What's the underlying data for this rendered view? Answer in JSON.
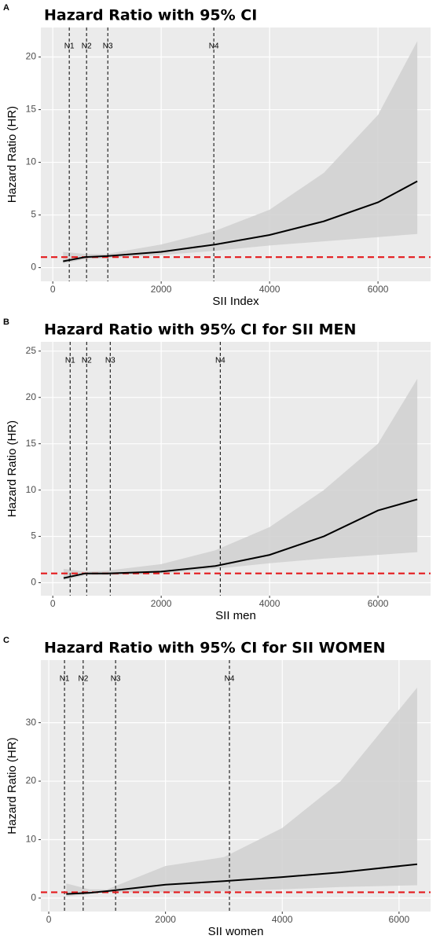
{
  "chart_data": [
    {
      "type": "line",
      "panel_label": "A",
      "title": "Hazard Ratio with 95% CI",
      "x_label": "SII Index",
      "y_label": "Hazard Ratio (HR)",
      "x": [
        190,
        600,
        1000,
        2000,
        3000,
        4000,
        5000,
        6000,
        6725
      ],
      "series": [
        {
          "color": "#000000",
          "values": [
            0.6,
            1.0,
            1.1,
            1.5,
            2.2,
            3.1,
            4.4,
            6.2,
            8.2
          ]
        }
      ],
      "band": {
        "color": "#d0d0d0",
        "lower": [
          0.4,
          0.8,
          0.9,
          1.2,
          1.6,
          2.1,
          2.5,
          2.9,
          3.2
        ],
        "upper": [
          1.5,
          1.3,
          1.3,
          2.2,
          3.5,
          5.5,
          9,
          14.5,
          21.5
        ]
      },
      "vlines": [
        {
          "value": 304,
          "label": "N1"
        },
        {
          "value": 623,
          "label": "N2"
        },
        {
          "value": 1015,
          "label": "N3"
        },
        {
          "value": 2971,
          "label": "N4"
        }
      ],
      "hline": {
        "value": 1,
        "color": "#e41a1c"
      },
      "xlim": [
        -220,
        6970
      ],
      "ylim": [
        -1.3,
        22.8
      ],
      "xticks": [
        0,
        2000,
        4000,
        6000
      ],
      "yticks": [
        0,
        5,
        10,
        15,
        20
      ],
      "grid": true
    },
    {
      "type": "line",
      "panel_label": "B",
      "title": "Hazard Ratio with 95% CI for SII MEN",
      "x_label": "SII  men",
      "y_label": "Hazard Ratio (HR)",
      "x": [
        200,
        600,
        1000,
        2000,
        3000,
        4000,
        5000,
        6000,
        6725
      ],
      "series": [
        {
          "color": "#000000",
          "values": [
            0.5,
            1.0,
            1.0,
            1.2,
            1.8,
            3.0,
            5.0,
            7.8,
            9.0
          ]
        }
      ],
      "band": {
        "color": "#d0d0d0",
        "lower": [
          0.3,
          0.8,
          0.8,
          1.0,
          1.5,
          2.1,
          2.6,
          3.0,
          3.3
        ],
        "upper": [
          1.5,
          1.2,
          1.3,
          2.0,
          3.5,
          6.0,
          10.0,
          15.0,
          22.0
        ]
      },
      "vlines": [
        {
          "value": 320,
          "label": "N1"
        },
        {
          "value": 625,
          "label": "N2"
        },
        {
          "value": 1060,
          "label": "N3"
        },
        {
          "value": 3090,
          "label": "N4"
        }
      ],
      "hline": {
        "value": 1,
        "color": "#e41a1c"
      },
      "xlim": [
        -220,
        6970
      ],
      "ylim": [
        -1.4,
        26
      ],
      "xticks": [
        0,
        2000,
        4000,
        6000
      ],
      "yticks": [
        0,
        5,
        10,
        15,
        20,
        25
      ],
      "grid": true
    },
    {
      "type": "line",
      "panel_label": "C",
      "title": "Hazard Ratio with 95% CI for SII WOMEN",
      "x_label": "SII  women",
      "y_label": "Hazard Ratio (HR)",
      "x": [
        300,
        700,
        1000,
        2000,
        3000,
        4000,
        5000,
        6310
      ],
      "series": [
        {
          "color": "#000000",
          "values": [
            0.7,
            0.9,
            1.2,
            2.3,
            2.9,
            3.6,
            4.4,
            5.8
          ]
        }
      ],
      "band": {
        "color": "#d0d0d0",
        "lower": [
          0.3,
          0.7,
          1.0,
          1.0,
          1.2,
          1.5,
          1.9,
          2.2
        ],
        "upper": [
          2.5,
          1.5,
          1.5,
          5.5,
          7.0,
          12.0,
          20.0,
          36.0
        ]
      },
      "vlines": [
        {
          "value": 270,
          "label": "N1"
        },
        {
          "value": 590,
          "label": "N2"
        },
        {
          "value": 1145,
          "label": "N3"
        },
        {
          "value": 3095,
          "label": "N4"
        }
      ],
      "hline": {
        "value": 1,
        "color": "#e41a1c"
      },
      "xlim": [
        -135,
        6540
      ],
      "ylim": [
        -2.3,
        40.7
      ],
      "xticks": [
        0,
        2000,
        4000,
        6000
      ],
      "yticks": [
        0,
        10,
        20,
        30
      ],
      "grid": true
    }
  ]
}
